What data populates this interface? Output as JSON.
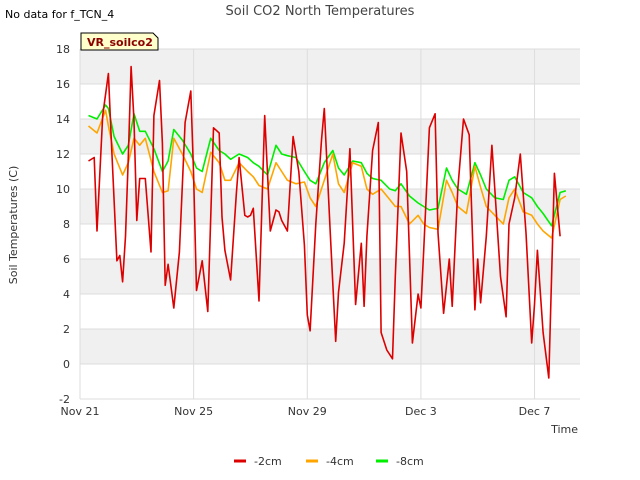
{
  "chart_data": {
    "type": "line",
    "title": "Soil CO2 North Temperatures",
    "note": "No data for f_TCN_4",
    "badge": "VR_soilco2",
    "xlabel": "Time",
    "ylabel": "Soil Temperatures (C)",
    "xlim": [
      0,
      17.6
    ],
    "ylim": [
      -2,
      18
    ],
    "yticks": [
      -2,
      0,
      2,
      4,
      6,
      8,
      10,
      12,
      14,
      16,
      18
    ],
    "xticks": [
      {
        "x": 0,
        "label": "Nov 21"
      },
      {
        "x": 4,
        "label": "Nov 25"
      },
      {
        "x": 8,
        "label": "Nov 29"
      },
      {
        "x": 12,
        "label": "Dec 3"
      },
      {
        "x": 16,
        "label": "Dec 7"
      }
    ],
    "grid": true,
    "legend": "bottom",
    "band_color": "#f0f0f0",
    "series": [
      {
        "name": "-2cm",
        "color": "#dd0000",
        "x": [
          0.3,
          0.5,
          0.6,
          0.8,
          1.0,
          1.1,
          1.3,
          1.4,
          1.5,
          1.6,
          1.7,
          1.8,
          1.9,
          2.0,
          2.1,
          2.3,
          2.5,
          2.6,
          2.8,
          2.9,
          3.0,
          3.1,
          3.3,
          3.5,
          3.7,
          3.9,
          4.0,
          4.1,
          4.3,
          4.5,
          4.7,
          4.9,
          5.0,
          5.1,
          5.3,
          5.5,
          5.6,
          5.8,
          5.9,
          6.0,
          6.1,
          6.3,
          6.5,
          6.7,
          6.9,
          7.0,
          7.1,
          7.3,
          7.5,
          7.7,
          7.9,
          8.0,
          8.1,
          8.3,
          8.5,
          8.6,
          8.8,
          9.0,
          9.1,
          9.3,
          9.5,
          9.7,
          9.9,
          10.0,
          10.1,
          10.3,
          10.5,
          10.6,
          10.8,
          11.0,
          11.1,
          11.3,
          11.5,
          11.7,
          11.9,
          12.0,
          12.1,
          12.3,
          12.5,
          12.6,
          12.8,
          13.0,
          13.1,
          13.3,
          13.5,
          13.7,
          13.9,
          14.0,
          14.1,
          14.3,
          14.5,
          14.6,
          14.8,
          15.0,
          15.1,
          15.3,
          15.5,
          15.7,
          15.9,
          16.0,
          16.1,
          16.3,
          16.5,
          16.7,
          16.9
        ],
        "values": [
          11.6,
          11.8,
          7.6,
          14.2,
          16.6,
          12.8,
          5.9,
          6.2,
          4.7,
          7.3,
          11.8,
          17.0,
          13.9,
          8.2,
          10.6,
          10.6,
          6.4,
          14.2,
          16.2,
          12.6,
          4.5,
          5.7,
          3.2,
          6.4,
          13.8,
          15.6,
          10.8,
          4.2,
          5.9,
          3.0,
          13.5,
          13.2,
          8.4,
          6.5,
          4.8,
          9.7,
          11.8,
          8.5,
          8.4,
          8.5,
          8.9,
          3.6,
          14.2,
          7.6,
          8.8,
          8.7,
          8.2,
          7.6,
          13.0,
          11.0,
          6.8,
          2.8,
          1.9,
          8.0,
          12.8,
          14.6,
          7.8,
          1.3,
          4.1,
          6.9,
          12.3,
          3.4,
          6.9,
          3.3,
          7.3,
          12.2,
          13.8,
          1.8,
          0.8,
          0.3,
          5.0,
          13.2,
          11.0,
          1.2,
          4.0,
          3.2,
          6.5,
          13.5,
          14.3,
          7.5,
          2.9,
          6.0,
          3.3,
          10.0,
          14.0,
          13.1,
          3.1,
          6.0,
          3.5,
          7.3,
          12.5,
          10.0,
          5.0,
          2.7,
          8.0,
          9.5,
          12.0,
          7.5,
          1.2,
          3.4,
          6.5,
          1.8,
          -0.8,
          10.9,
          7.3
        ]
      },
      {
        "name": "-4cm",
        "color": "#ffa500",
        "x": [
          0.3,
          0.6,
          0.9,
          1.0,
          1.2,
          1.5,
          1.7,
          1.9,
          2.1,
          2.3,
          2.6,
          2.9,
          3.1,
          3.3,
          3.6,
          3.9,
          4.1,
          4.3,
          4.6,
          4.9,
          5.1,
          5.3,
          5.6,
          5.9,
          6.1,
          6.3,
          6.6,
          6.9,
          7.1,
          7.3,
          7.6,
          7.9,
          8.1,
          8.3,
          8.6,
          8.9,
          9.1,
          9.3,
          9.6,
          9.9,
          10.1,
          10.3,
          10.6,
          10.9,
          11.1,
          11.3,
          11.6,
          11.9,
          12.1,
          12.3,
          12.6,
          12.9,
          13.1,
          13.3,
          13.6,
          13.9,
          14.1,
          14.3,
          14.6,
          14.9,
          15.1,
          15.3,
          15.6,
          15.9,
          16.1,
          16.3,
          16.6,
          16.9,
          17.1
        ],
        "values": [
          13.6,
          13.2,
          14.5,
          13.6,
          12.0,
          10.8,
          11.5,
          12.9,
          12.5,
          12.9,
          11.0,
          9.8,
          9.9,
          12.9,
          12.0,
          11.0,
          10.0,
          9.8,
          12.1,
          11.5,
          10.5,
          10.5,
          11.5,
          11.0,
          10.7,
          10.2,
          10.0,
          11.5,
          11.0,
          10.5,
          10.3,
          10.4,
          9.5,
          9.0,
          10.5,
          12.0,
          10.3,
          9.8,
          11.5,
          11.3,
          10.0,
          9.7,
          10.0,
          9.4,
          9.0,
          9.0,
          8.0,
          8.5,
          8.0,
          7.8,
          7.7,
          10.5,
          9.8,
          9.0,
          8.6,
          11.3,
          10.1,
          9.0,
          8.5,
          8.0,
          9.5,
          10.0,
          8.7,
          8.5,
          8.0,
          7.6,
          7.2,
          9.4,
          9.6
        ]
      },
      {
        "name": "-8cm",
        "color": "#00ee00",
        "x": [
          0.3,
          0.6,
          0.9,
          1.0,
          1.2,
          1.5,
          1.7,
          1.9,
          2.1,
          2.3,
          2.6,
          2.9,
          3.1,
          3.3,
          3.6,
          3.9,
          4.1,
          4.3,
          4.6,
          4.9,
          5.1,
          5.3,
          5.6,
          5.9,
          6.1,
          6.3,
          6.6,
          6.9,
          7.1,
          7.3,
          7.6,
          7.9,
          8.1,
          8.3,
          8.6,
          8.9,
          9.1,
          9.3,
          9.6,
          9.9,
          10.1,
          10.3,
          10.6,
          10.9,
          11.1,
          11.3,
          11.6,
          11.9,
          12.1,
          12.3,
          12.6,
          12.9,
          13.1,
          13.3,
          13.6,
          13.9,
          14.1,
          14.3,
          14.6,
          14.9,
          15.1,
          15.3,
          15.6,
          15.9,
          16.1,
          16.3,
          16.6,
          16.9,
          17.1
        ],
        "values": [
          14.2,
          14.0,
          14.8,
          14.6,
          13.0,
          12.0,
          12.5,
          14.3,
          13.3,
          13.3,
          12.3,
          11.0,
          11.6,
          13.4,
          12.8,
          12.0,
          11.2,
          11.0,
          12.9,
          12.2,
          12.0,
          11.7,
          12.0,
          11.8,
          11.5,
          11.3,
          10.8,
          12.5,
          12.0,
          11.9,
          11.8,
          11.0,
          10.5,
          10.3,
          11.5,
          12.2,
          11.2,
          10.8,
          11.6,
          11.5,
          10.9,
          10.6,
          10.5,
          10.0,
          9.9,
          10.3,
          9.6,
          9.2,
          9.0,
          8.8,
          8.9,
          11.2,
          10.5,
          10.0,
          9.7,
          11.5,
          10.8,
          10.0,
          9.5,
          9.4,
          10.5,
          10.7,
          9.8,
          9.5,
          9.0,
          8.6,
          7.9,
          9.8,
          9.9
        ]
      }
    ]
  }
}
